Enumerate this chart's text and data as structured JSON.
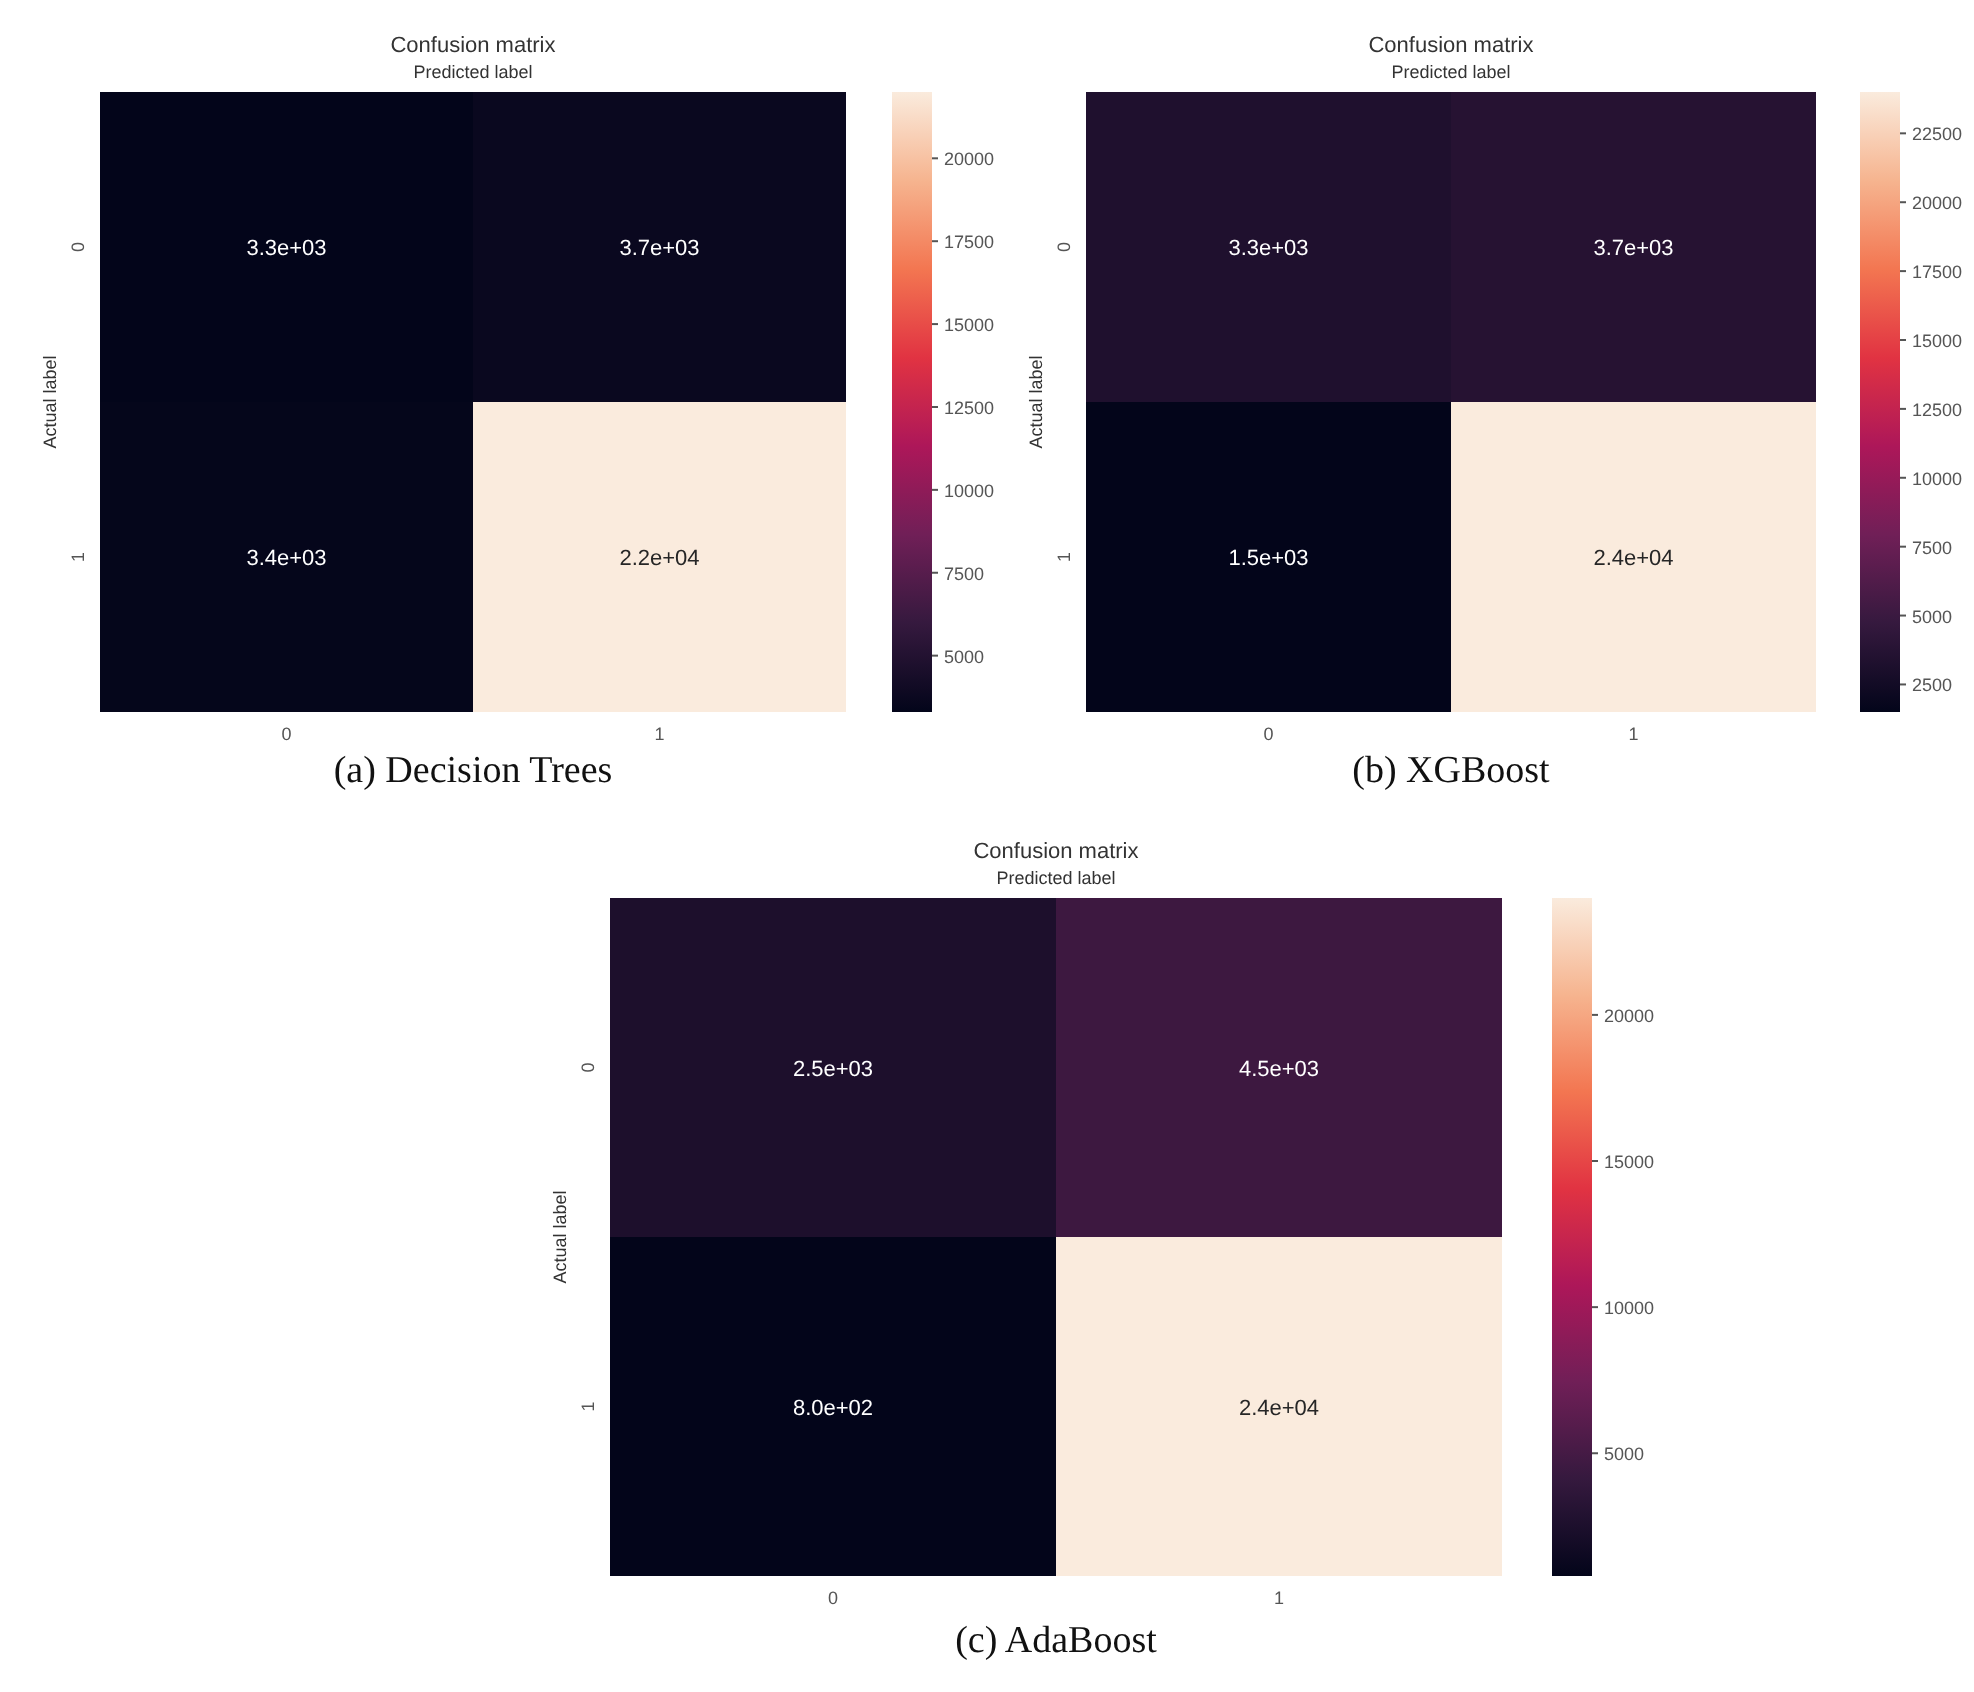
{
  "chart_data": [
    {
      "type": "heatmap",
      "title": "Confusion matrix",
      "xlabel": "Predicted label",
      "ylabel": "Actual label",
      "categories": [
        "0",
        "1"
      ],
      "y_categories": [
        "0",
        "1"
      ],
      "cells": [
        [
          3300,
          3700
        ],
        [
          3400,
          22000
        ]
      ],
      "cell_labels": [
        [
          "3.3e+03",
          "3.7e+03"
        ],
        [
          "3.4e+03",
          "2.2e+04"
        ]
      ],
      "clim": [
        3300,
        22000
      ],
      "cticks": [
        5000,
        7500,
        10000,
        12500,
        15000,
        17500,
        20000
      ],
      "annotations": [
        "(a) Decision Trees"
      ]
    },
    {
      "type": "heatmap",
      "title": "Confusion matrix",
      "xlabel": "Predicted label",
      "ylabel": "Actual label",
      "categories": [
        "0",
        "1"
      ],
      "y_categories": [
        "0",
        "1"
      ],
      "cells": [
        [
          3300,
          3700
        ],
        [
          1500,
          24000
        ]
      ],
      "cell_labels": [
        [
          "3.3e+03",
          "3.7e+03"
        ],
        [
          "1.5e+03",
          "2.4e+04"
        ]
      ],
      "clim": [
        1500,
        24000
      ],
      "cticks": [
        2500,
        5000,
        7500,
        10000,
        12500,
        15000,
        17500,
        20000,
        22500
      ],
      "annotations": [
        "(b) XGBoost"
      ]
    },
    {
      "type": "heatmap",
      "title": "Confusion matrix",
      "xlabel": "Predicted label",
      "ylabel": "Actual label",
      "categories": [
        "0",
        "1"
      ],
      "y_categories": [
        "0",
        "1"
      ],
      "cells": [
        [
          2500,
          4500
        ],
        [
          800,
          24000
        ]
      ],
      "cell_labels": [
        [
          "2.5e+03",
          "4.5e+03"
        ],
        [
          "8.0e+02",
          "2.4e+04"
        ]
      ],
      "clim": [
        800,
        24000
      ],
      "cticks": [
        5000,
        10000,
        15000,
        20000
      ],
      "annotations": [
        "(c) AdaBoost"
      ]
    }
  ]
}
